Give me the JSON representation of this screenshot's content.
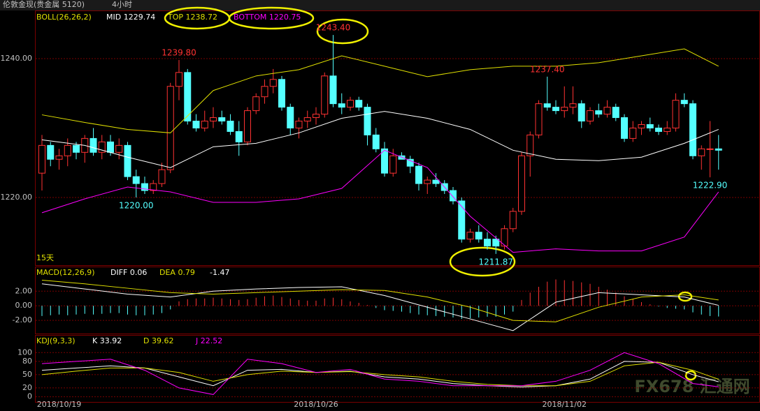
{
  "chart_data": [
    {
      "type": "candlestick",
      "title": "伦敦金现(贵金属 5120)",
      "period": "4小时",
      "legend": [
        {
          "text": "BOLL(26,26,2)",
          "color": "#e0e000"
        },
        {
          "text": "MID 1229.74",
          "color": "#ffffff"
        },
        {
          "text": "TOP 1238.72",
          "color": "#e0e000"
        },
        {
          "text": "BOTTOM 1220.75",
          "color": "#ff00ff"
        }
      ],
      "open": [
        1223.5,
        1227.5,
        1225.5,
        1226,
        1227.5,
        1226.5,
        1228.5,
        1226.5,
        1228,
        1226.5,
        1227.5,
        1223,
        1222,
        1221,
        1222,
        1224,
        1236,
        1238,
        1231,
        1230,
        1231,
        1231.5,
        1231,
        1229.5,
        1228,
        1232.5,
        1234.5,
        1236,
        1237,
        1233,
        1230,
        1231,
        1231.5,
        1232,
        1237.5,
        1233.5,
        1233,
        1234,
        1233,
        1229,
        1227,
        1223.5,
        1226,
        1225.5,
        1224.5,
        1222,
        1222.5,
        1222,
        1221,
        1219.5,
        1214,
        1215,
        1214,
        1214,
        1213,
        1215.5,
        1218,
        1226,
        1229,
        1233.5,
        1233,
        1232.5,
        1233,
        1233.5,
        1231,
        1232.5,
        1232,
        1233,
        1231.5,
        1228.5,
        1230,
        1230.5,
        1230,
        1229.5,
        1230,
        1234,
        1233.5,
        1226,
        1227,
        1227
      ],
      "high": [
        1229,
        1228,
        1227,
        1228.5,
        1228,
        1229,
        1230,
        1229,
        1229,
        1228.5,
        1228,
        1224,
        1223,
        1222.5,
        1225,
        1236.5,
        1239.8,
        1238.5,
        1232,
        1232.5,
        1233,
        1232.5,
        1232,
        1231,
        1233,
        1235,
        1237,
        1238.5,
        1237.5,
        1233.5,
        1231.5,
        1232.5,
        1233,
        1238,
        1243.4,
        1235,
        1234.5,
        1234.5,
        1233.5,
        1230,
        1228,
        1227,
        1226.5,
        1226,
        1225,
        1223,
        1223.5,
        1222.5,
        1221.5,
        1220,
        1215.5,
        1216,
        1215,
        1214.5,
        1216,
        1218.5,
        1226.5,
        1229.5,
        1234,
        1237.4,
        1234,
        1236,
        1236,
        1234,
        1233,
        1233.5,
        1234,
        1233.5,
        1232,
        1231,
        1231,
        1231.5,
        1230.5,
        1231,
        1235,
        1235,
        1234,
        1227.5,
        1231,
        1229
      ],
      "low": [
        1221,
        1224.5,
        1224,
        1224.5,
        1225.5,
        1225,
        1226,
        1225.5,
        1226,
        1225.5,
        1222.5,
        1220,
        1220.5,
        1220.5,
        1221.5,
        1223.5,
        1234,
        1230.5,
        1229.5,
        1229.5,
        1230,
        1230.5,
        1229,
        1226,
        1227.5,
        1232,
        1233.5,
        1235,
        1232.5,
        1229,
        1228.5,
        1230,
        1230.5,
        1231.5,
        1233,
        1232,
        1232.5,
        1232.5,
        1227.5,
        1226.5,
        1223,
        1223,
        1225.5,
        1223.5,
        1221,
        1220.5,
        1221.5,
        1220.5,
        1219,
        1213.5,
        1213.5,
        1213.5,
        1212.5,
        1211.87,
        1212.5,
        1215,
        1217.5,
        1223,
        1228.5,
        1232.5,
        1232,
        1231.5,
        1232,
        1230,
        1230.5,
        1231.5,
        1231.5,
        1231,
        1228,
        1228,
        1229,
        1229.5,
        1229,
        1229,
        1229.5,
        1233,
        1225.5,
        1224,
        1222.9,
        1224
      ],
      "close": [
        1227.5,
        1225.5,
        1226,
        1227.5,
        1226.5,
        1228.5,
        1226.5,
        1228,
        1226.5,
        1227.5,
        1223,
        1222,
        1221,
        1222,
        1224,
        1236,
        1238,
        1231,
        1230,
        1231,
        1231.5,
        1231,
        1229.5,
        1228,
        1232.5,
        1234.5,
        1236,
        1237,
        1233,
        1230,
        1231,
        1231.5,
        1232,
        1237.5,
        1233.5,
        1233,
        1234,
        1233,
        1229,
        1227,
        1223.5,
        1226,
        1225.5,
        1224.5,
        1222,
        1222.5,
        1222,
        1221,
        1219.5,
        1214,
        1215,
        1214,
        1213,
        1213,
        1215.5,
        1218,
        1226,
        1229,
        1233.5,
        1233,
        1232.5,
        1233,
        1233.5,
        1231,
        1232.5,
        1232,
        1233,
        1231.5,
        1228.5,
        1230,
        1230.5,
        1230,
        1229.5,
        1230,
        1234,
        1233.5,
        1226,
        1227,
        1227,
        1226.8
      ],
      "up_color": "#ff3232",
      "down_color": "#54ffff",
      "lines": [
        {
          "color": "#ffffff",
          "x": [
            0,
            5,
            10,
            15,
            20,
            25,
            30,
            35,
            40,
            45,
            50,
            55,
            60,
            65,
            70,
            75,
            79
          ],
          "values": [
            1228.3,
            1227.5,
            1225.8,
            1224.3,
            1227.3,
            1227.8,
            1229.3,
            1231.4,
            1232.4,
            1231.4,
            1229.8,
            1226.8,
            1225.5,
            1225.3,
            1225.8,
            1227.8,
            1229.8
          ]
        },
        {
          "color": "#e0e000",
          "x": [
            0,
            5,
            10,
            15,
            20,
            25,
            30,
            35,
            40,
            45,
            50,
            55,
            60,
            65,
            70,
            75,
            79
          ],
          "values": [
            1231.9,
            1230.8,
            1229.8,
            1229.3,
            1235.4,
            1237.5,
            1238.4,
            1240.4,
            1238.9,
            1237.4,
            1238.4,
            1238.9,
            1238.9,
            1239.4,
            1240.4,
            1241.4,
            1238.9
          ]
        },
        {
          "color": "#ff00ff",
          "x": [
            0,
            5,
            10,
            15,
            20,
            25,
            30,
            35,
            40,
            45,
            50,
            55,
            60,
            65,
            70,
            75,
            79
          ],
          "values": [
            1217.8,
            1219.8,
            1221.5,
            1220.8,
            1219.3,
            1219.3,
            1219.8,
            1221.3,
            1226.8,
            1224.3,
            1217.3,
            1212.1,
            1212.6,
            1212.3,
            1212.3,
            1214.3,
            1220.8
          ]
        }
      ],
      "annotations": [
        {
          "text": "1239.80",
          "x": 16,
          "y": 1239.8,
          "color": "#ff3232"
        },
        {
          "text": "1220.00",
          "x": 11,
          "y": 1220.0,
          "color": "#54ffff"
        },
        {
          "text": "1243.40",
          "x": 34,
          "y": 1243.4,
          "color": "#ff3232"
        },
        {
          "text": "1237.40",
          "x": 59,
          "y": 1237.4,
          "color": "#ff3232"
        },
        {
          "text": "1211.87",
          "x": 53,
          "y": 1211.87,
          "color": "#54ffff"
        },
        {
          "text": "1222.90",
          "x": 78,
          "y": 1222.9,
          "color": "#54ffff"
        }
      ],
      "note": "15天",
      "ylim": [
        1210.25,
        1246.93
      ],
      "yticks": [
        {
          "value": 1240,
          "label": "1240.00"
        },
        {
          "value": 1220,
          "label": "1220.00"
        }
      ],
      "xticks": [
        {
          "value": 2,
          "label": "2018/10/19"
        },
        {
          "value": 32,
          "label": "2018/10/26"
        },
        {
          "value": 61,
          "label": "2018/11/02"
        }
      ],
      "watermark": "FX678 汇通网"
    },
    {
      "type": "macd",
      "legend": [
        {
          "text": "MACD(12,26,9)",
          "color": "#e0e000"
        },
        {
          "text": "DIFF 0.06",
          "color": "#ffffff"
        },
        {
          "text": "DEA 0.79",
          "color": "#e0e000"
        },
        {
          "text": "-1.47",
          "color": "#ffffff"
        }
      ],
      "histogram": [
        -1.4,
        -1.3,
        -1.2,
        -1.3,
        -1.2,
        -1.1,
        -1.2,
        -1.1,
        -1.0,
        -1.0,
        -1.2,
        -1.3,
        -1.3,
        -1.2,
        -1.0,
        -0.5,
        0.6,
        0.9,
        1.0,
        1.0,
        1.1,
        1.0,
        0.9,
        0.8,
        0.9,
        1.1,
        1.3,
        1.4,
        1.2,
        1.0,
        0.8,
        0.7,
        0.7,
        1.0,
        1.1,
        0.9,
        0.6,
        0.4,
        0.1,
        -0.3,
        -0.6,
        -0.7,
        -0.8,
        -1.0,
        -1.2,
        -1.3,
        -1.4,
        -1.5,
        -1.6,
        -1.8,
        -1.7,
        -1.6,
        -1.5,
        -1.5,
        -1.2,
        -0.8,
        0.8,
        1.8,
        2.6,
        3.3,
        3.6,
        3.5,
        3.4,
        3.2,
        3.0,
        2.6,
        2.2,
        1.8,
        1.3,
        0.9,
        0.5,
        0.2,
        -0.1,
        -0.3,
        -0.4,
        -0.5,
        -0.9,
        -1.2,
        -1.4,
        -1.47
      ],
      "up_color": "#ff3232",
      "down_color": "#54ffff",
      "lines": [
        {
          "color": "#ffffff",
          "x": [
            0,
            5,
            10,
            15,
            20,
            25,
            30,
            35,
            40,
            45,
            50,
            55,
            60,
            65,
            70,
            75,
            79
          ],
          "values": [
            3.0,
            2.3,
            1.6,
            1.2,
            2.0,
            2.3,
            2.5,
            2.6,
            1.4,
            -0.2,
            -1.8,
            -3.4,
            0.5,
            1.8,
            1.5,
            1.2,
            0.06
          ]
        },
        {
          "color": "#e0e000",
          "x": [
            0,
            5,
            10,
            15,
            20,
            25,
            30,
            35,
            40,
            45,
            50,
            55,
            60,
            65,
            70,
            75,
            79
          ],
          "values": [
            3.5,
            3.0,
            2.4,
            1.8,
            1.6,
            1.8,
            2.0,
            2.2,
            2.1,
            1.2,
            -0.2,
            -2.0,
            -2.2,
            -0.2,
            1.2,
            1.5,
            0.79
          ]
        }
      ],
      "ylim": [
        -3.8,
        5.27
      ],
      "yticks": [
        {
          "value": 2,
          "label": "2.00"
        },
        {
          "value": 0,
          "label": "0.00"
        },
        {
          "value": -2,
          "label": "-2.00"
        }
      ]
    },
    {
      "type": "kdj",
      "legend": [
        {
          "text": "KDJ(9,3,3)",
          "color": "#e0e000"
        },
        {
          "text": "K 33.92",
          "color": "#ffffff"
        },
        {
          "text": "D 39.62",
          "color": "#e0e000"
        },
        {
          "text": "J 22.52",
          "color": "#ff00ff"
        }
      ],
      "lines": [
        {
          "color": "#ffffff",
          "x": [
            0,
            4,
            8,
            12,
            16,
            20,
            24,
            28,
            32,
            36,
            40,
            44,
            48,
            52,
            56,
            60,
            64,
            68,
            72,
            76,
            79
          ],
          "values": [
            60,
            65,
            70,
            65,
            45,
            25,
            60,
            62,
            55,
            58,
            45,
            40,
            30,
            25,
            22,
            25,
            40,
            80,
            78,
            50,
            33.92
          ]
        },
        {
          "color": "#e0e000",
          "x": [
            0,
            4,
            8,
            12,
            16,
            20,
            24,
            28,
            32,
            36,
            40,
            44,
            48,
            52,
            56,
            60,
            64,
            68,
            72,
            76,
            79
          ],
          "values": [
            50,
            58,
            65,
            65,
            55,
            35,
            50,
            58,
            55,
            57,
            50,
            45,
            35,
            28,
            25,
            25,
            35,
            70,
            78,
            60,
            39.62
          ]
        },
        {
          "color": "#ff00ff",
          "x": [
            0,
            4,
            8,
            12,
            16,
            20,
            24,
            28,
            32,
            36,
            40,
            44,
            48,
            52,
            56,
            60,
            64,
            68,
            72,
            76,
            79
          ],
          "values": [
            75,
            80,
            85,
            60,
            20,
            5,
            85,
            75,
            55,
            62,
            40,
            35,
            25,
            25,
            25,
            35,
            60,
            100,
            75,
            30,
            22.52
          ]
        }
      ],
      "ylim": [
        -11.7,
        138.3
      ],
      "yticks": [
        100,
        80,
        50,
        20,
        0
      ]
    }
  ]
}
